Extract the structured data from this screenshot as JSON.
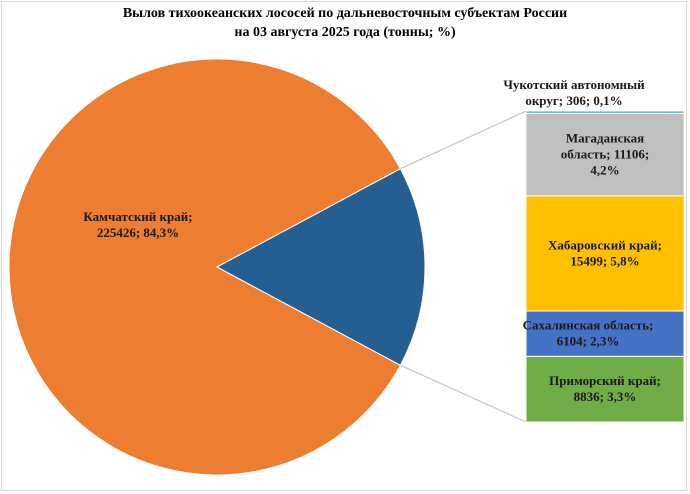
{
  "chart_data": {
    "type": "pie",
    "subtype": "bar-of-pie",
    "title_lines": [
      "Вылов тихоокеанских лососей по дальневосточным субъектам России",
      "на 03 августа 2025 года (тонны; %)"
    ],
    "main_slice": {
      "label_lines": [
        "Камчатский край;",
        "225426; 84,3%"
      ],
      "value": 225426,
      "percent": 84.3,
      "color": "#ED7D31"
    },
    "other_slice_color": "#255E91",
    "bar_segments": [
      {
        "label_lines": [
          "Приморский край;",
          "8836; 3,3%"
        ],
        "value": 8836,
        "percent": 3.3,
        "color": "#70AD47"
      },
      {
        "label_lines": [
          "Сахалинская область;",
          "6104; 2,3%"
        ],
        "value": 6104,
        "percent": 2.3,
        "color": "#4472C4"
      },
      {
        "label_lines": [
          "Хабаровский край;",
          "15499; 5,8%"
        ],
        "value": 15499,
        "percent": 5.8,
        "color": "#FFC000"
      },
      {
        "label_lines": [
          "Магаданская",
          "область; 11106;",
          "4,2%"
        ],
        "value": 11106,
        "percent": 4.2,
        "color": "#BFBFBF"
      },
      {
        "label_lines": [
          "Чукотский автономный",
          "округ; 306; 0,1%"
        ],
        "value": 306,
        "percent": 0.1,
        "color": "#5B9BD5"
      }
    ],
    "legend": "none",
    "grid": false
  }
}
